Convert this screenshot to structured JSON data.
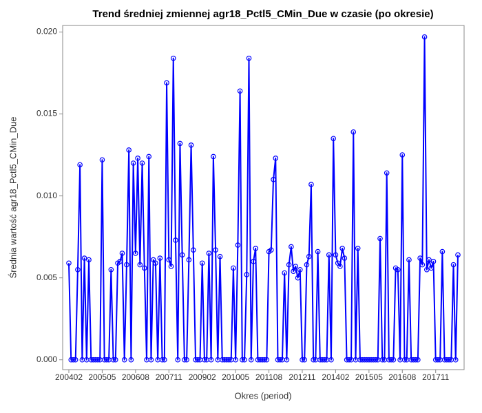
{
  "chart_data": {
    "type": "line",
    "title": "Trend średniej zmiennej agr18_Pctl5_CMin_Due w czasie (po okresie)",
    "x_label": "Okres (period)",
    "y_label": "Średnia wartość agr18_Pctl5_CMin_Due",
    "color": "#0000ff",
    "marker": "circle",
    "grid": false,
    "categories": [
      "200402",
      null,
      null,
      null,
      null,
      null,
      null,
      null,
      null,
      null,
      null,
      null,
      null,
      null,
      null,
      "200505",
      null,
      null,
      null,
      null,
      null,
      null,
      null,
      null,
      null,
      null,
      null,
      null,
      null,
      null,
      "200608",
      null,
      null,
      null,
      null,
      null,
      null,
      null,
      null,
      null,
      null,
      null,
      null,
      null,
      null,
      "200711",
      null,
      null,
      null,
      null,
      null,
      null,
      null,
      null,
      null,
      null,
      null,
      null,
      null,
      null,
      "200902",
      null,
      null,
      null,
      null,
      null,
      null,
      null,
      null,
      null,
      null,
      null,
      null,
      null,
      null,
      "201005",
      null,
      null,
      null,
      null,
      null,
      null,
      null,
      null,
      null,
      null,
      null,
      null,
      null,
      null,
      "201108",
      null,
      null,
      null,
      null,
      null,
      null,
      null,
      null,
      null,
      null,
      null,
      null,
      null,
      null,
      "201211",
      null,
      null,
      null,
      null,
      null,
      null,
      null,
      null,
      null,
      null,
      null,
      null,
      null,
      null,
      "201402",
      null,
      null,
      null,
      null,
      null,
      null,
      null,
      null,
      null,
      null,
      null,
      null,
      null,
      null,
      "201505",
      null,
      null,
      null,
      null,
      null,
      null,
      null,
      null,
      null,
      null,
      null,
      null,
      null,
      null,
      "201608",
      null,
      null,
      null,
      null,
      null,
      null,
      null,
      null,
      null,
      null,
      null,
      null,
      null,
      null,
      "201711",
      null,
      null,
      null,
      null,
      null,
      null,
      null,
      null,
      null,
      null
    ],
    "values": [
      0.0059,
      0,
      0,
      0,
      0.0055,
      0.0119,
      0,
      0.0062,
      0,
      0.0061,
      0,
      0,
      0,
      0,
      0,
      0.0122,
      0,
      0,
      0,
      0.0055,
      0,
      0,
      0.0059,
      0.006,
      0.0065,
      0,
      0.0058,
      0.0128,
      0,
      0.012,
      0.0065,
      0.0123,
      0.0058,
      0.012,
      0.0056,
      0,
      0.0124,
      0,
      0.0061,
      0.0059,
      0,
      0.0062,
      0,
      0,
      0.0169,
      0.0061,
      0.0057,
      0.0184,
      0.0073,
      0,
      0.0132,
      0.0064,
      0,
      0,
      0.0061,
      0.0131,
      0.0067,
      0,
      0,
      0,
      0.0059,
      0,
      0,
      0.0065,
      0,
      0.0124,
      0.0067,
      0,
      0.0063,
      0,
      0,
      0,
      0,
      0,
      0.0056,
      0,
      0.007,
      0.0164,
      0,
      0,
      0.0052,
      0.0184,
      0,
      0.006,
      0.0068,
      0,
      0,
      0,
      0,
      0,
      0.0066,
      0.0067,
      0.011,
      0.0123,
      0,
      0,
      0,
      0.0053,
      0,
      0.0058,
      0.0069,
      0.0054,
      0.0057,
      0.005,
      0.0055,
      0,
      0,
      0.0058,
      0.0063,
      0.0107,
      0,
      0,
      0.0066,
      0,
      0,
      0,
      0,
      0.0064,
      0,
      0.0135,
      0.0064,
      0.0059,
      0.0057,
      0.0068,
      0.0062,
      0,
      0,
      0,
      0.0139,
      0,
      0.0068,
      0,
      0,
      0,
      0,
      0,
      0,
      0,
      0,
      0,
      0.0074,
      0,
      0,
      0.0114,
      0,
      0,
      0,
      0.0056,
      0.0055,
      0,
      0.0125,
      0,
      0,
      0.0061,
      0,
      0,
      0,
      0,
      0.0062,
      0.0058,
      0.0197,
      0.0055,
      0.0061,
      0.0056,
      0.006,
      0,
      0,
      0,
      0.0066,
      0,
      0,
      0,
      0,
      0.0058,
      0,
      0.0064
    ],
    "ylim": [
      -0.0006,
      0.0204
    ],
    "yticks": [
      {
        "value": 0,
        "label": "0.000"
      },
      {
        "value": 0.005,
        "label": "0.005"
      },
      {
        "value": 0.01,
        "label": "0.010"
      },
      {
        "value": 0.015,
        "label": "0.015"
      },
      {
        "value": 0.02,
        "label": "0.020"
      }
    ]
  }
}
